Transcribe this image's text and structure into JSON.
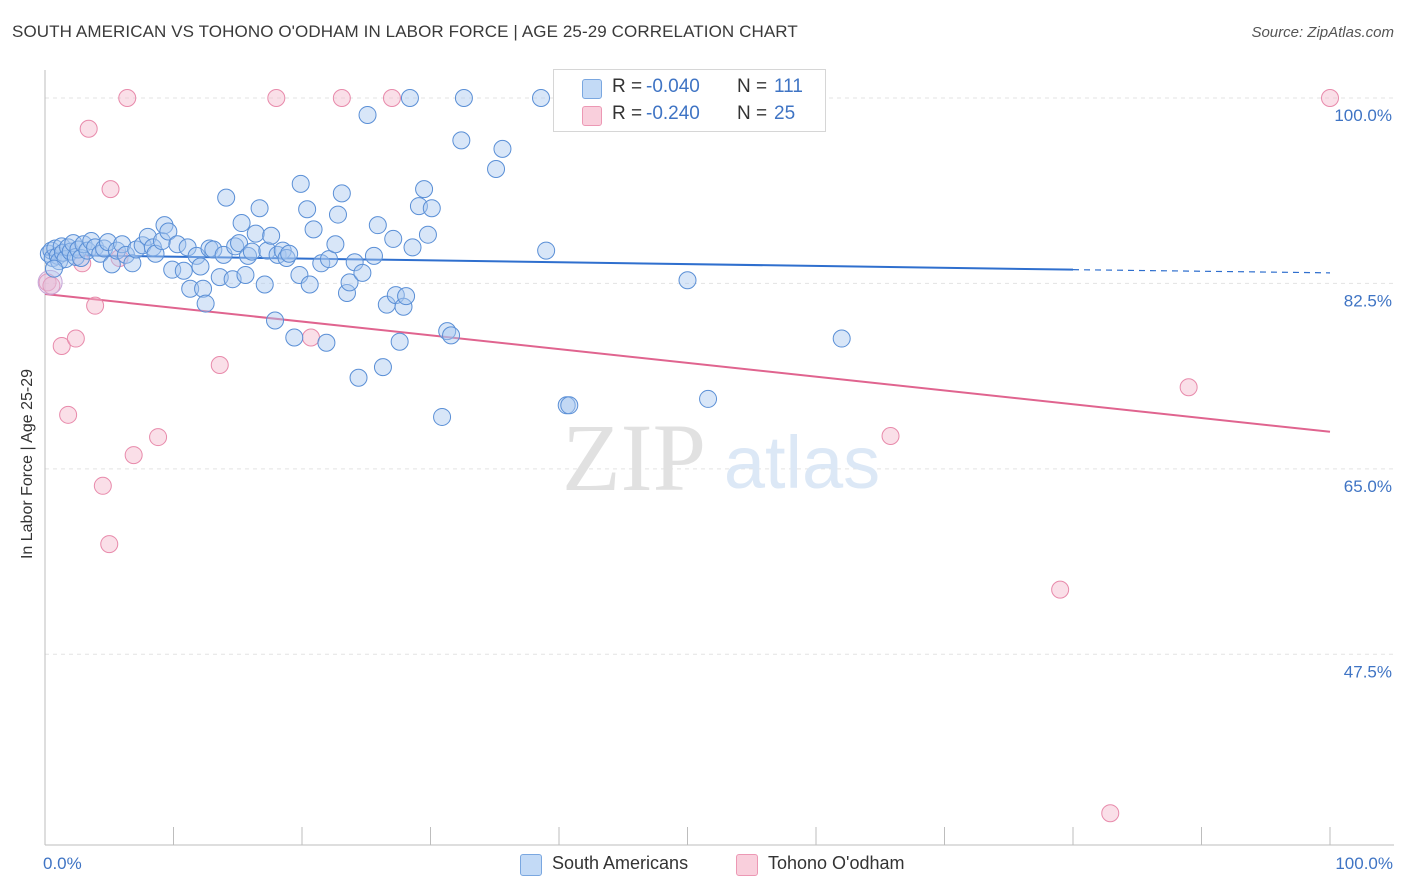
{
  "header": {
    "title": "SOUTH AMERICAN VS TOHONO O'ODHAM IN LABOR FORCE | AGE 25-29 CORRELATION CHART",
    "source": "Source: ZipAtlas.com"
  },
  "watermark": {
    "zip": "ZIP",
    "atlas": "atlas"
  },
  "legend": {
    "rows": [
      {
        "r_label": "R =",
        "r_value": "-0.040",
        "n_label": "N =",
        "n_value": "111",
        "color": "#a8c8f0"
      },
      {
        "r_label": "R =",
        "r_value": "-0.240",
        "n_label": "N =",
        "n_value": "25",
        "color": "#f5b8cc"
      }
    ]
  },
  "bottom_legend": {
    "items": [
      {
        "label": "South Americans",
        "color": "#a8c8f0"
      },
      {
        "label": "Tohono O'odham",
        "color": "#f5b8cc"
      }
    ]
  },
  "chart_data": {
    "type": "scatter",
    "ylabel": "In Labor Force | Age 25-29",
    "xlabel": "",
    "x_tick_labels": [
      "0.0%",
      "100.0%"
    ],
    "y_tick_labels": [
      "100.0%",
      "82.5%",
      "65.0%",
      "47.5%"
    ],
    "y_ticks": [
      100.0,
      82.5,
      65.0,
      47.5
    ],
    "xlim": [
      0,
      100
    ],
    "ylim": [
      29.5,
      101.7
    ],
    "grid": true,
    "colors": {
      "blue": "#3f74c4",
      "blue_line": "#2f6fce",
      "pink_line": "#e0648f",
      "blue_fill": "#a8c8f0",
      "pink_fill": "#f5b8cc"
    },
    "series": [
      {
        "name": "South Americans",
        "trend": {
          "x0": 0,
          "y0": 85.2,
          "x1": 80,
          "y1": 83.8,
          "dash_to_x": 100,
          "dash_y": 83.5
        },
        "points": [
          [
            0.3,
            85.3
          ],
          [
            0.5,
            85.6
          ],
          [
            0.6,
            84.9
          ],
          [
            0.8,
            85.8
          ],
          [
            1.0,
            85.1
          ],
          [
            1.1,
            84.6
          ],
          [
            1.3,
            86.0
          ],
          [
            1.4,
            85.4
          ],
          [
            1.6,
            84.8
          ],
          [
            1.8,
            85.9
          ],
          [
            2.0,
            85.5
          ],
          [
            2.2,
            86.3
          ],
          [
            2.4,
            85.0
          ],
          [
            2.6,
            85.7
          ],
          [
            2.8,
            84.9
          ],
          [
            3.0,
            86.2
          ],
          [
            3.3,
            85.6
          ],
          [
            3.6,
            86.5
          ],
          [
            3.9,
            85.9
          ],
          [
            4.3,
            85.3
          ],
          [
            4.6,
            85.8
          ],
          [
            4.9,
            86.4
          ],
          [
            5.2,
            84.3
          ],
          [
            5.6,
            85.6
          ],
          [
            6.0,
            86.2
          ],
          [
            6.3,
            85.2
          ],
          [
            6.8,
            84.4
          ],
          [
            7.1,
            85.7
          ],
          [
            7.6,
            86.1
          ],
          [
            8.0,
            86.9
          ],
          [
            8.4,
            85.9
          ],
          [
            8.6,
            85.3
          ],
          [
            9.1,
            86.5
          ],
          [
            9.3,
            88.0
          ],
          [
            9.6,
            87.4
          ],
          [
            9.9,
            83.8
          ],
          [
            10.3,
            86.2
          ],
          [
            10.8,
            83.7
          ],
          [
            11.1,
            85.9
          ],
          [
            11.3,
            82.0
          ],
          [
            11.8,
            85.1
          ],
          [
            12.1,
            84.1
          ],
          [
            12.3,
            82.0
          ],
          [
            12.5,
            80.6
          ],
          [
            12.8,
            85.8
          ],
          [
            13.1,
            85.7
          ],
          [
            13.6,
            83.1
          ],
          [
            13.9,
            85.2
          ],
          [
            14.1,
            90.6
          ],
          [
            14.6,
            82.9
          ],
          [
            14.8,
            86.0
          ],
          [
            15.1,
            86.3
          ],
          [
            15.3,
            88.2
          ],
          [
            15.6,
            83.3
          ],
          [
            15.8,
            85.1
          ],
          [
            16.1,
            85.5
          ],
          [
            16.4,
            87.2
          ],
          [
            16.7,
            89.6
          ],
          [
            17.1,
            82.4
          ],
          [
            17.3,
            85.6
          ],
          [
            17.6,
            87.0
          ],
          [
            17.9,
            79.0
          ],
          [
            18.1,
            85.2
          ],
          [
            18.5,
            85.6
          ],
          [
            18.8,
            84.9
          ],
          [
            19.0,
            85.3
          ],
          [
            19.4,
            77.4
          ],
          [
            19.8,
            83.3
          ],
          [
            19.9,
            91.9
          ],
          [
            20.4,
            89.5
          ],
          [
            20.6,
            82.4
          ],
          [
            20.9,
            87.6
          ],
          [
            21.5,
            84.4
          ],
          [
            21.9,
            76.9
          ],
          [
            22.1,
            84.8
          ],
          [
            22.6,
            86.2
          ],
          [
            22.8,
            89.0
          ],
          [
            23.1,
            91.0
          ],
          [
            23.5,
            81.6
          ],
          [
            23.7,
            82.6
          ],
          [
            24.1,
            84.5
          ],
          [
            24.4,
            73.6
          ],
          [
            24.7,
            83.5
          ],
          [
            25.1,
            98.4
          ],
          [
            25.6,
            85.1
          ],
          [
            25.9,
            88.0
          ],
          [
            26.3,
            74.6
          ],
          [
            26.6,
            80.5
          ],
          [
            27.1,
            86.7
          ],
          [
            27.3,
            81.4
          ],
          [
            27.6,
            77.0
          ],
          [
            27.9,
            80.3
          ],
          [
            28.1,
            81.3
          ],
          [
            28.4,
            100.0
          ],
          [
            28.6,
            85.9
          ],
          [
            29.1,
            89.8
          ],
          [
            29.5,
            91.4
          ],
          [
            29.8,
            87.1
          ],
          [
            30.1,
            89.6
          ],
          [
            30.9,
            69.9
          ],
          [
            31.3,
            78.0
          ],
          [
            31.6,
            77.6
          ],
          [
            32.4,
            96.0
          ],
          [
            32.6,
            100.0
          ],
          [
            35.1,
            93.3
          ],
          [
            35.6,
            95.2
          ],
          [
            38.6,
            100.0
          ],
          [
            39.0,
            85.6
          ],
          [
            40.6,
            71.0
          ],
          [
            40.8,
            71.0
          ],
          [
            41.3,
            100.0
          ],
          [
            50.0,
            82.8
          ],
          [
            51.6,
            71.6
          ],
          [
            62.0,
            77.3
          ],
          [
            0.7,
            83.9
          ]
        ]
      },
      {
        "name": "Tohono O'odham",
        "trend": {
          "x0": 0,
          "y0": 81.5,
          "x1": 100,
          "y1": 68.5
        },
        "points": [
          [
            0.2,
            82.6
          ],
          [
            0.5,
            82.3
          ],
          [
            1.3,
            76.6
          ],
          [
            1.8,
            70.1
          ],
          [
            2.4,
            77.3
          ],
          [
            2.9,
            84.4
          ],
          [
            3.4,
            97.1
          ],
          [
            3.9,
            80.4
          ],
          [
            4.5,
            63.4
          ],
          [
            5.0,
            57.9
          ],
          [
            5.1,
            91.4
          ],
          [
            5.8,
            84.9
          ],
          [
            6.4,
            100.0
          ],
          [
            6.9,
            66.3
          ],
          [
            8.8,
            68.0
          ],
          [
            13.6,
            74.8
          ],
          [
            18.0,
            100.0
          ],
          [
            20.7,
            77.4
          ],
          [
            23.1,
            100.0
          ],
          [
            27.0,
            100.0
          ],
          [
            65.8,
            68.1
          ],
          [
            79.0,
            53.6
          ],
          [
            82.9,
            32.5
          ],
          [
            89.0,
            72.7
          ],
          [
            100.0,
            100.0
          ]
        ]
      }
    ]
  }
}
